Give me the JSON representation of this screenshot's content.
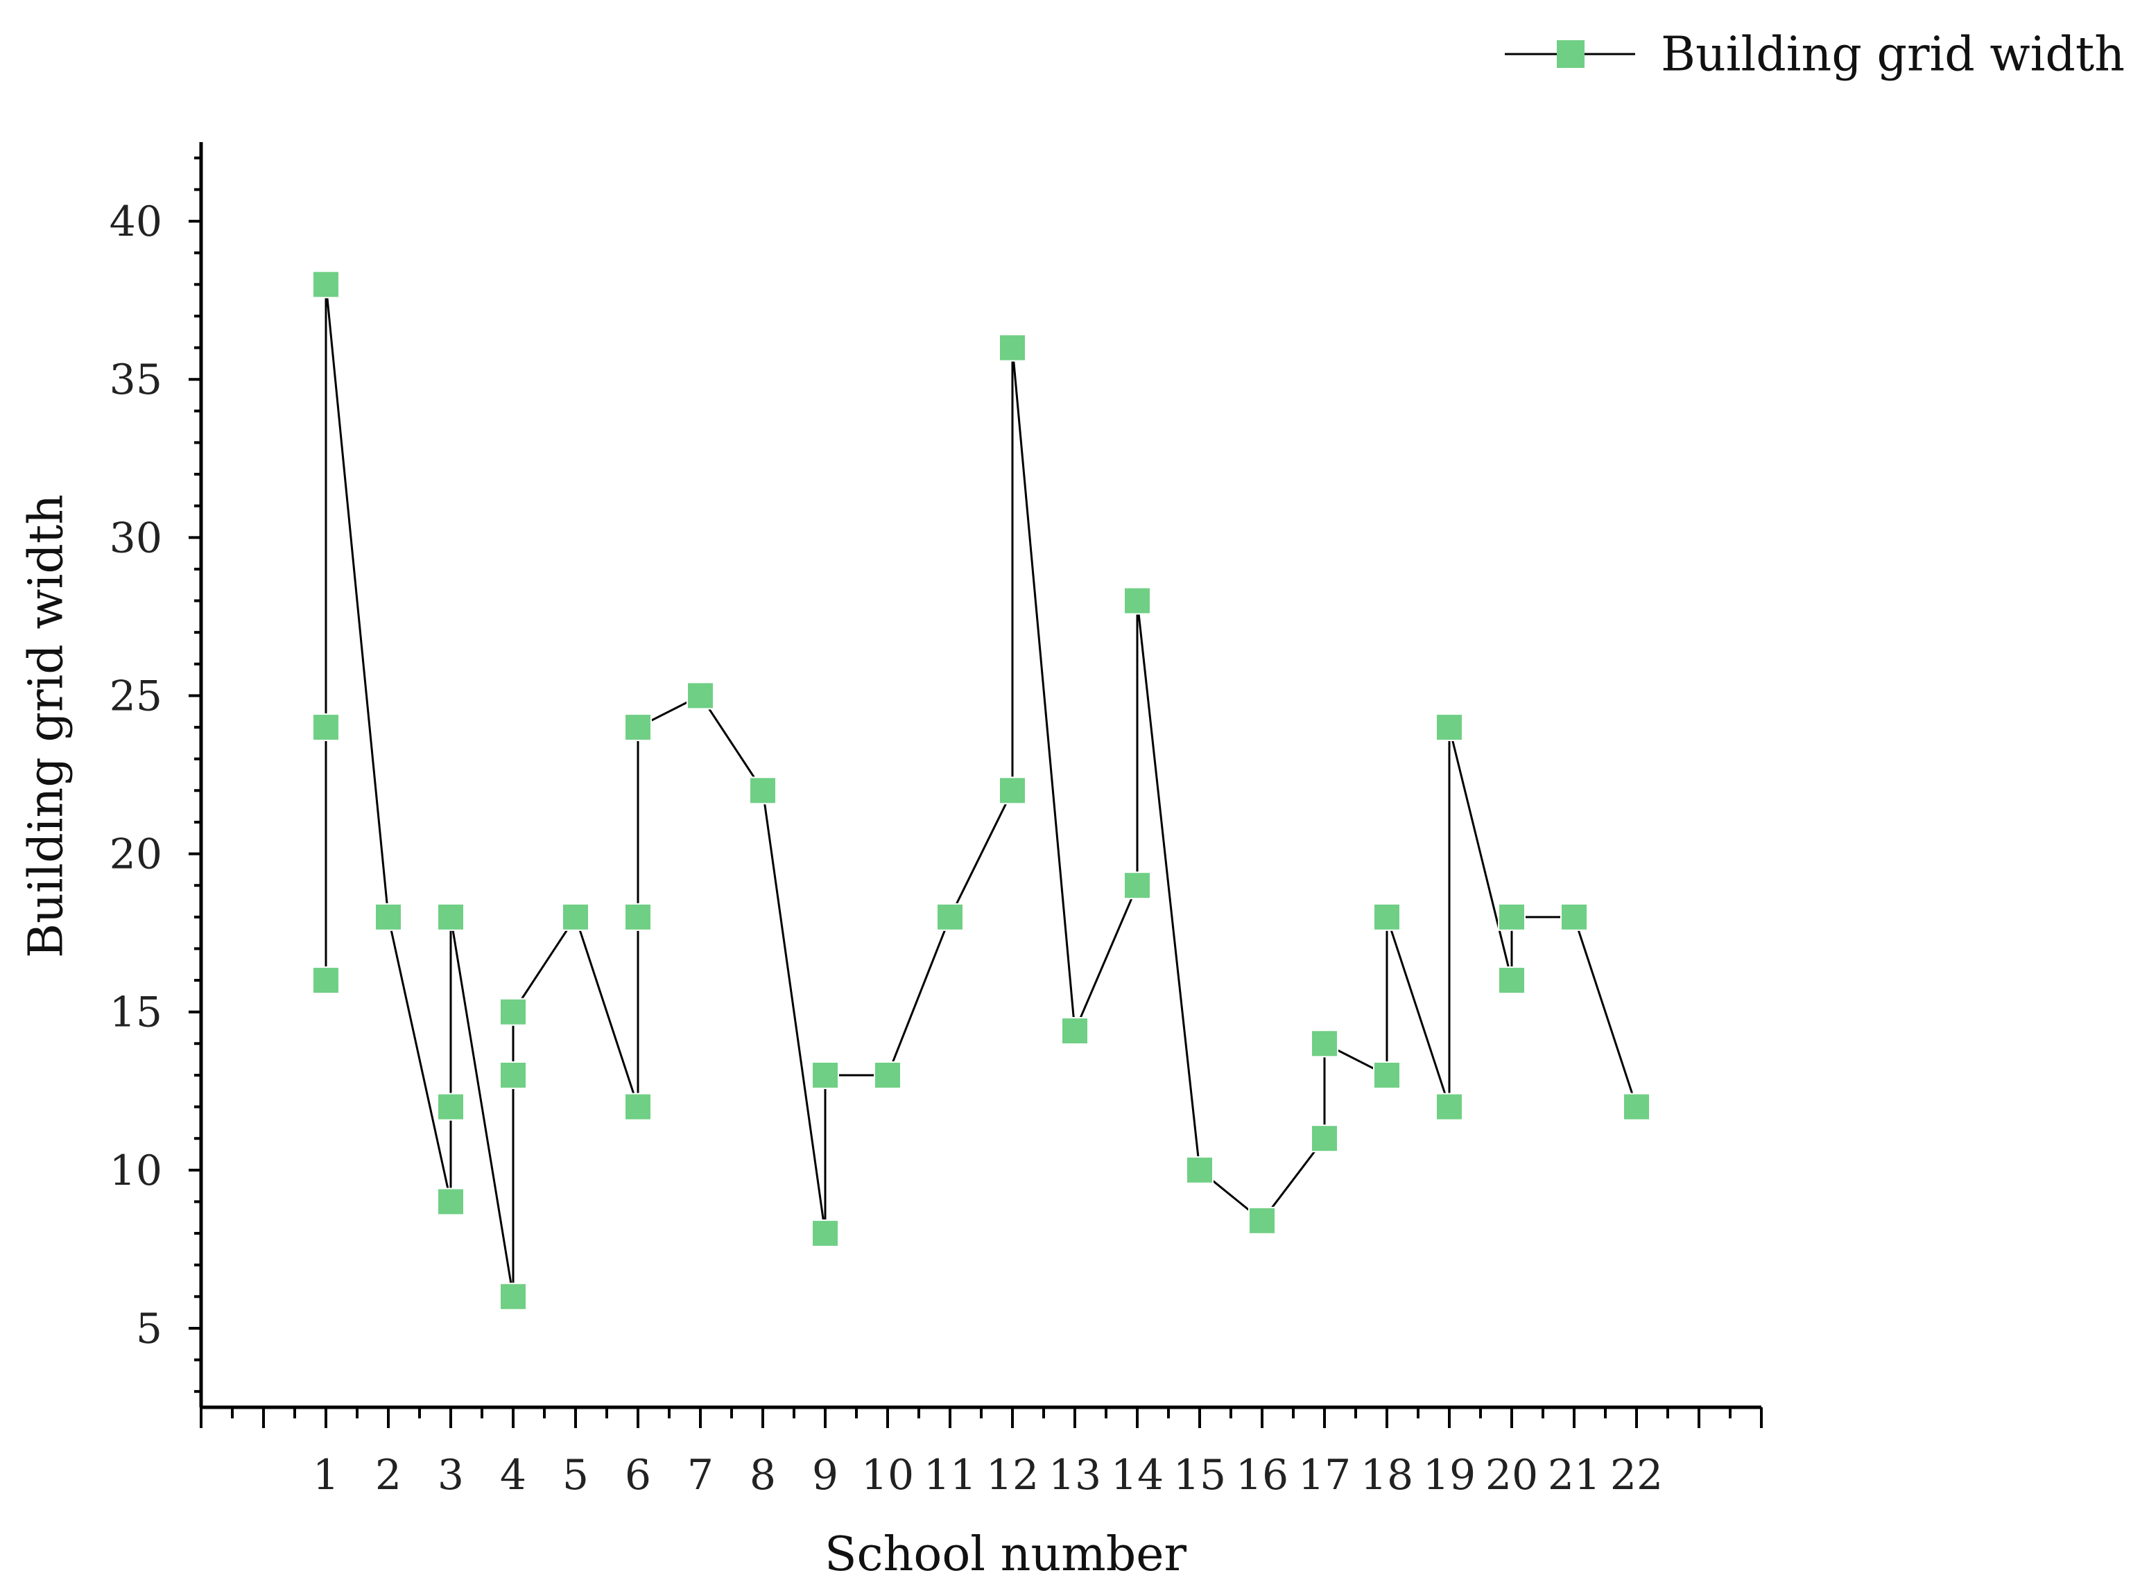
{
  "chart_data": {
    "type": "scatter",
    "title": "",
    "xlabel": "School number",
    "ylabel": "Building grid width",
    "categories": [
      "1",
      "2",
      "3",
      "4",
      "5",
      "6",
      "7",
      "8",
      "9",
      "10",
      "11",
      "12",
      "13",
      "14",
      "15",
      "16",
      "17",
      "18",
      "19",
      "20",
      "21",
      "22"
    ],
    "xlim": [
      -1,
      24
    ],
    "ylim": [
      2.5,
      42.5
    ],
    "yticks": [
      5,
      10,
      15,
      20,
      25,
      30,
      35,
      40
    ],
    "grid": false,
    "legend_position": "top-right",
    "series": [
      {
        "name": "Building grid width",
        "color": "#6fcf84",
        "line_color": "#000000",
        "marker": "square",
        "points": [
          {
            "x": 1,
            "y": 16
          },
          {
            "x": 1,
            "y": 24
          },
          {
            "x": 1,
            "y": 38
          },
          {
            "x": 2,
            "y": 18
          },
          {
            "x": 3,
            "y": 9
          },
          {
            "x": 3,
            "y": 12
          },
          {
            "x": 3,
            "y": 18
          },
          {
            "x": 4,
            "y": 6
          },
          {
            "x": 4,
            "y": 13
          },
          {
            "x": 4,
            "y": 15
          },
          {
            "x": 5,
            "y": 18
          },
          {
            "x": 6,
            "y": 12
          },
          {
            "x": 6,
            "y": 18
          },
          {
            "x": 6,
            "y": 24
          },
          {
            "x": 7,
            "y": 25
          },
          {
            "x": 8,
            "y": 22
          },
          {
            "x": 9,
            "y": 8
          },
          {
            "x": 9,
            "y": 13
          },
          {
            "x": 10,
            "y": 13
          },
          {
            "x": 11,
            "y": 18
          },
          {
            "x": 12,
            "y": 22
          },
          {
            "x": 12,
            "y": 36
          },
          {
            "x": 13,
            "y": 14.4
          },
          {
            "x": 14,
            "y": 19
          },
          {
            "x": 14,
            "y": 28
          },
          {
            "x": 15,
            "y": 10
          },
          {
            "x": 16,
            "y": 8.4
          },
          {
            "x": 17,
            "y": 11
          },
          {
            "x": 17,
            "y": 14
          },
          {
            "x": 18,
            "y": 13
          },
          {
            "x": 18,
            "y": 18
          },
          {
            "x": 19,
            "y": 12
          },
          {
            "x": 19,
            "y": 24
          },
          {
            "x": 20,
            "y": 16
          },
          {
            "x": 20,
            "y": 18
          },
          {
            "x": 21,
            "y": 18
          },
          {
            "x": 22,
            "y": 12
          }
        ]
      }
    ]
  }
}
